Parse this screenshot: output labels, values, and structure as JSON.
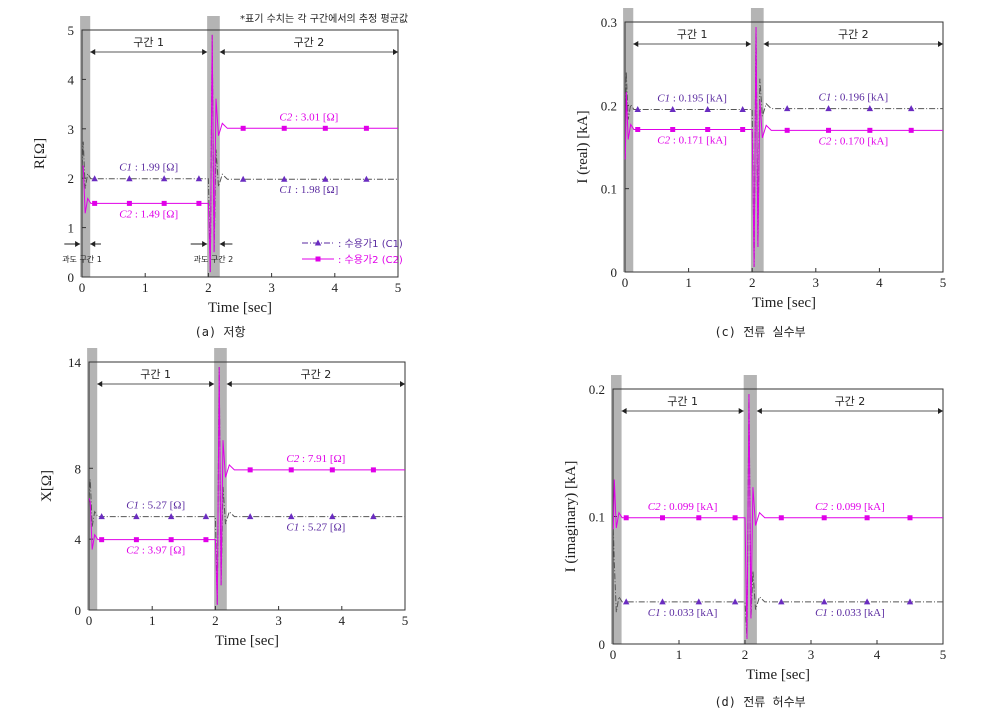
{
  "note": "*표기 수치는 각 구간에서의 추정 평균값",
  "legend": {
    "c1": "수용가1 (C1)",
    "c2": "수용가2 (C2)"
  },
  "colors": {
    "c1": "#5a2aa0",
    "c1_dash": "#555555",
    "c2": "#e000e8",
    "shade": "#b4b4b4",
    "marker_c1": "#6a2cc0"
  },
  "chart_data": [
    {
      "id": "a",
      "type": "line",
      "caption": "(a) 저항",
      "ylabel": "R[Ω]",
      "xlabel": "Time [sec]",
      "xlim": [
        0,
        5
      ],
      "ylim": [
        0,
        5
      ],
      "xticks": [
        "0",
        "1",
        "2",
        "3",
        "4",
        "5"
      ],
      "yticks": [
        "0",
        "1",
        "2",
        "3",
        "4",
        "5"
      ],
      "ytick_values": [
        0,
        1,
        2,
        3,
        4,
        5
      ],
      "section_labels": [
        "구간 1",
        "구간 2"
      ],
      "transient_labels": [
        "과도 구간 1",
        "과도 구간 2"
      ],
      "series": [
        {
          "name": "C1",
          "values": [
            {
              "interval": 1,
              "value": 1.99,
              "label": "C1 : 1.99 [Ω]"
            },
            {
              "interval": 2,
              "value": 1.98,
              "label": "C1 : 1.98 [Ω]"
            }
          ]
        },
        {
          "name": "C2",
          "values": [
            {
              "interval": 1,
              "value": 1.49,
              "label": "C2 : 1.49 [Ω]"
            },
            {
              "interval": 2,
              "value": 3.01,
              "label": "C2 : 3.01 [Ω]"
            }
          ]
        }
      ]
    },
    {
      "id": "c",
      "type": "line",
      "caption": "(c) 전류 실수부",
      "ylabel": "I (real) [kA]",
      "xlabel": "Time [sec]",
      "xlim": [
        0,
        5
      ],
      "ylim": [
        0,
        0.3
      ],
      "xticks": [
        "0",
        "1",
        "2",
        "3",
        "4",
        "5"
      ],
      "yticks": [
        "0",
        "0.1",
        "0.2",
        "0.3"
      ],
      "ytick_values": [
        0,
        0.1,
        0.2,
        0.3
      ],
      "section_labels": [
        "구간 1",
        "구간 2"
      ],
      "series": [
        {
          "name": "C1",
          "values": [
            {
              "interval": 1,
              "value": 0.195,
              "label": "C1 : 0.195 [kA]"
            },
            {
              "interval": 2,
              "value": 0.196,
              "label": "C1 : 0.196 [kA]"
            }
          ]
        },
        {
          "name": "C2",
          "values": [
            {
              "interval": 1,
              "value": 0.171,
              "label": "C2 : 0.171 [kA]"
            },
            {
              "interval": 2,
              "value": 0.17,
              "label": "C2 : 0.170 [kA]"
            }
          ]
        }
      ]
    },
    {
      "id": "b",
      "type": "line",
      "caption": "",
      "ylabel": "X[Ω]",
      "xlabel": "Time [sec]",
      "xlim": [
        0,
        5
      ],
      "ylim": [
        0,
        14
      ],
      "xticks": [
        "0",
        "1",
        "2",
        "3",
        "4",
        "5"
      ],
      "yticks": [
        "0",
        "4",
        "8",
        "14"
      ],
      "ytick_values": [
        0,
        4,
        8,
        14
      ],
      "section_labels": [
        "구간 1",
        "구간 2"
      ],
      "series": [
        {
          "name": "C1",
          "values": [
            {
              "interval": 1,
              "value": 5.27,
              "label": "C1 : 5.27 [Ω]"
            },
            {
              "interval": 2,
              "value": 5.27,
              "label": "C1 : 5.27 [Ω]"
            }
          ]
        },
        {
          "name": "C2",
          "values": [
            {
              "interval": 1,
              "value": 3.97,
              "label": "C2 : 3.97 [Ω]"
            },
            {
              "interval": 2,
              "value": 7.91,
              "label": "C2 : 7.91 [Ω]"
            }
          ]
        }
      ]
    },
    {
      "id": "d",
      "type": "line",
      "caption": "(d) 전류 허수부",
      "ylabel": "I (imaginary) [kA]",
      "xlabel": "Time [sec]",
      "xlim": [
        0,
        5
      ],
      "ylim": [
        0,
        0.2
      ],
      "xticks": [
        "0",
        "1",
        "2",
        "3",
        "4",
        "5"
      ],
      "yticks": [
        "0",
        "0.1",
        "0.2"
      ],
      "ytick_values": [
        0,
        0.1,
        0.2
      ],
      "section_labels": [
        "구간 1",
        "구간 2"
      ],
      "series": [
        {
          "name": "C1",
          "values": [
            {
              "interval": 1,
              "value": 0.033,
              "label": "C1 : 0.033 [kA]"
            },
            {
              "interval": 2,
              "value": 0.033,
              "label": "C1 : 0.033 [kA]"
            }
          ]
        },
        {
          "name": "C2",
          "values": [
            {
              "interval": 1,
              "value": 0.099,
              "label": "C2 : 0.099 [kA]"
            },
            {
              "interval": 2,
              "value": 0.099,
              "label": "C2 : 0.099 [kA]"
            }
          ]
        }
      ]
    }
  ]
}
